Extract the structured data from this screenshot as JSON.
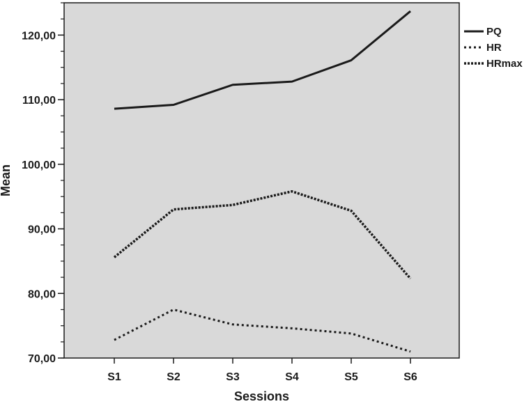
{
  "chart_data": {
    "type": "line",
    "categories": [
      "S1",
      "S2",
      "S3",
      "S4",
      "S5",
      "S6"
    ],
    "series": [
      {
        "name": "PQ",
        "values": [
          108.6,
          109.2,
          112.3,
          112.8,
          116.1,
          123.7
        ],
        "dash": "solid"
      },
      {
        "name": "HR",
        "values": [
          72.8,
          77.5,
          75.2,
          74.6,
          73.8,
          71.0
        ],
        "dash": "dotted"
      },
      {
        "name": "HRmax",
        "values": [
          85.6,
          93.0,
          93.7,
          95.8,
          92.8,
          82.3
        ],
        "dash": "dense-dotted"
      }
    ],
    "ylabel": "Mean",
    "xlabel": "Sessions",
    "ylim": [
      70,
      125
    ],
    "yticks": [
      70,
      80,
      90,
      100,
      110,
      120
    ],
    "ytick_labels": [
      "70,00",
      "80,00",
      "90,00",
      "100,00",
      "110,00",
      "120,00"
    ],
    "minor_ytick_step": 2.5,
    "legend_position": "right",
    "colors": {
      "plot_background": "#d9d9d9",
      "line": "#1a1a1a",
      "axis": "#1a1a1a"
    }
  }
}
